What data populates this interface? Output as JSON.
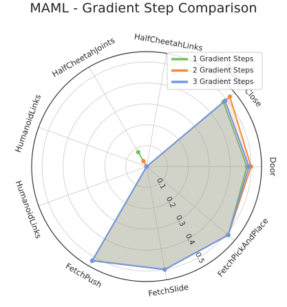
{
  "chart_data": {
    "type": "radar",
    "title": "MAML - Gradient Step Comparison",
    "categories": [
      "Door",
      "Drawer Close",
      "HalfCheetahLinks",
      "HalfCheetahJoints",
      "HumanoidLinks",
      "HumanoidLinks",
      "FetchPush",
      "FetchSlide",
      "FetchPickAndPlace"
    ],
    "r_ticks": [
      0.1,
      0.2,
      0.3,
      0.4,
      0.5
    ],
    "rlim": [
      0,
      0.55
    ],
    "grid": true,
    "legend_position": "upper-right",
    "series": [
      {
        "name": "1 Gradient Steps",
        "color": "#77c35a",
        "values": [
          0.48,
          0.48,
          0.0,
          0.08,
          0.0,
          0.0,
          0.52,
          0.5,
          0.51
        ]
      },
      {
        "name": "2 Gradient Steps",
        "color": "#f28a3c",
        "values": [
          0.5,
          0.52,
          0.0,
          0.03,
          0.0,
          0.0,
          0.52,
          0.5,
          0.51
        ]
      },
      {
        "name": "3 Gradient Steps",
        "color": "#6f96e4",
        "values": [
          0.49,
          0.49,
          0.0,
          0.0,
          0.0,
          0.0,
          0.52,
          0.5,
          0.51
        ]
      }
    ]
  }
}
